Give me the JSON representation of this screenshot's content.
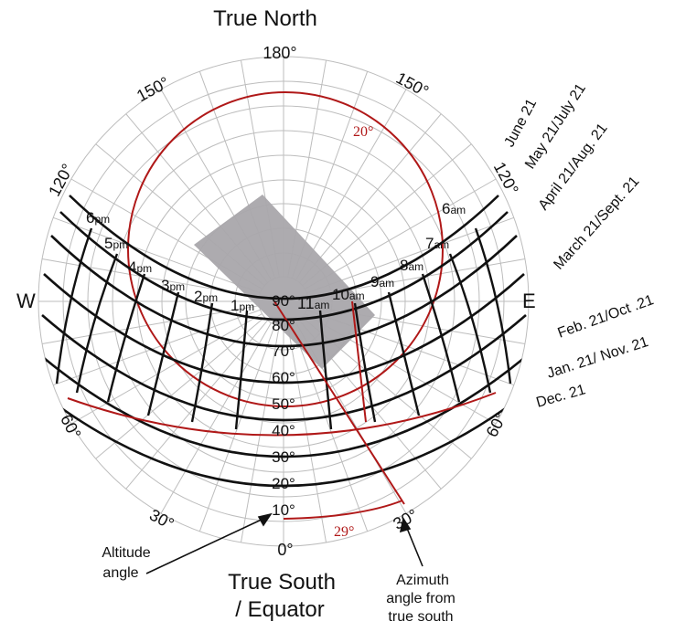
{
  "title_top": "True North",
  "title_bottom_line1": "True South",
  "title_bottom_line2": "/ Equator",
  "compass": {
    "west": "W",
    "east": "E"
  },
  "azimuth_labels": {
    "top": "180°",
    "upper_left": "150°",
    "upper_right": "150°",
    "left": "120°",
    "right": "120°",
    "lower_left": "60°",
    "lower_right": "60°",
    "bottom_left": "30°",
    "bottom_right": "30°",
    "bottom": "0°"
  },
  "altitude_labels": [
    "90°",
    "80°",
    "70°",
    "60°",
    "50°",
    "40°",
    "30°",
    "20°",
    "10°"
  ],
  "hour_labels": {
    "am": [
      {
        "n": "11",
        "s": "am"
      },
      {
        "n": "10",
        "s": "am"
      },
      {
        "n": "9",
        "s": "am"
      },
      {
        "n": "8",
        "s": "am"
      },
      {
        "n": "7",
        "s": "am"
      },
      {
        "n": "6",
        "s": "am"
      }
    ],
    "pm": [
      {
        "n": "1",
        "s": "pm"
      },
      {
        "n": "2",
        "s": "pm"
      },
      {
        "n": "3",
        "s": "pm"
      },
      {
        "n": "4",
        "s": "pm"
      },
      {
        "n": "5",
        "s": "pm"
      },
      {
        "n": "6",
        "s": "pm"
      }
    ]
  },
  "date_labels": [
    "June 21",
    "May 21/July 21",
    "April 21/Aug. 21",
    "March 21/Sept. 21",
    "Feb. 21/Oct .21",
    "Jan. 21/ Nov. 21",
    "Dec. 21"
  ],
  "annotations": {
    "red_circle_label": "20°",
    "azimuth_arc_label": "29°",
    "altitude_angle": [
      "Altitude",
      "angle"
    ],
    "azimuth_angle": [
      "Azimuth",
      "angle from",
      "true south"
    ]
  },
  "colors": {
    "ink": "#111111",
    "grid": "#bdbdbd",
    "accent": "#b01818",
    "shade": "#a9a6ab"
  }
}
